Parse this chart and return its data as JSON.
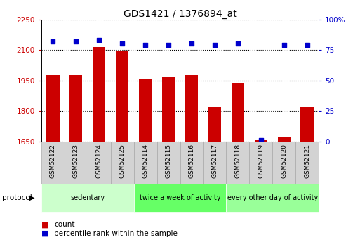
{
  "title": "GDS1421 / 1376894_at",
  "samples": [
    "GSM52122",
    "GSM52123",
    "GSM52124",
    "GSM52125",
    "GSM52114",
    "GSM52115",
    "GSM52116",
    "GSM52117",
    "GSM52118",
    "GSM52119",
    "GSM52120",
    "GSM52121"
  ],
  "counts": [
    1975,
    1975,
    2115,
    2095,
    1955,
    1965,
    1975,
    1820,
    1935,
    1655,
    1675,
    1820
  ],
  "percentiles": [
    82,
    82,
    83,
    80,
    79,
    79,
    80,
    79,
    80,
    1,
    79,
    79
  ],
  "ylim_left": [
    1650,
    2250
  ],
  "ylim_right": [
    0,
    100
  ],
  "yticks_left": [
    1650,
    1800,
    1950,
    2100,
    2250
  ],
  "yticks_right": [
    0,
    25,
    50,
    75,
    100
  ],
  "groups": [
    {
      "label": "sedentary",
      "start": 0,
      "end": 4,
      "color": "#ccffcc"
    },
    {
      "label": "twice a week of activity",
      "start": 4,
      "end": 8,
      "color": "#66ff66"
    },
    {
      "label": "every other day of activity",
      "start": 8,
      "end": 12,
      "color": "#99ff99"
    }
  ],
  "bar_color": "#cc0000",
  "dot_color": "#0000cc",
  "background_color": "#ffffff",
  "title_fontsize": 10,
  "protocol_label": "protocol",
  "legend_count_label": "count",
  "legend_percentile_label": "percentile rank within the sample",
  "sample_box_color": "#d3d3d3",
  "sample_box_edge": "#aaaaaa"
}
